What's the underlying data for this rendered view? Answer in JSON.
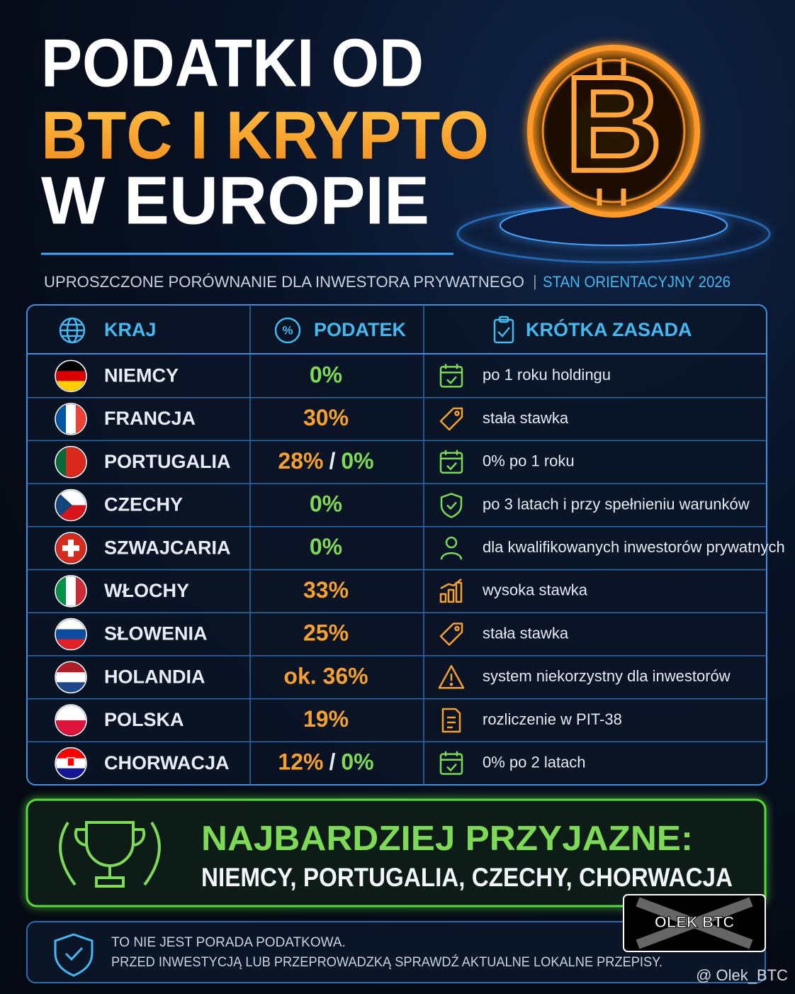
{
  "header": {
    "title_lines": [
      "PODATKI OD",
      "BTC I KRYPTO",
      "W EUROPIE"
    ],
    "subtitle": "UPROSZCZONE PORÓWNANIE DLA INWESTORA PRYWATNEGO",
    "subtitle_separator": "|",
    "subtitle_note": "STAN ORIENTACYJNY 2026"
  },
  "table": {
    "columns": [
      "KRAJ",
      "PODATEK",
      "KRÓTKA ZASADA"
    ],
    "tax_separator": "/",
    "rows": [
      {
        "country": "NIEMCY",
        "tax": [
          {
            "text": "0%",
            "color": "#7ed957"
          }
        ],
        "rule": "po 1 roku holdingu"
      },
      {
        "country": "FRANCJA",
        "tax": [
          {
            "text": "30%",
            "color": "#f5a030"
          }
        ],
        "rule": "stała stawka"
      },
      {
        "country": "PORTUGALIA",
        "tax": [
          {
            "text": "28%",
            "color": "#f5a030"
          },
          {
            "text": "0%",
            "color": "#7ed957"
          }
        ],
        "rule": "0% po 1 roku"
      },
      {
        "country": "CZECHY",
        "tax": [
          {
            "text": "0%",
            "color": "#7ed957"
          }
        ],
        "rule": "po 3 latach i przy spełnieniu warunków"
      },
      {
        "country": "SZWAJCARIA",
        "tax": [
          {
            "text": "0%",
            "color": "#7ed957"
          }
        ],
        "rule": "dla kwalifikowanych inwestorów prywatnych"
      },
      {
        "country": "WŁOCHY",
        "tax": [
          {
            "text": "33%",
            "color": "#f5a030"
          }
        ],
        "rule": "wysoka stawka"
      },
      {
        "country": "SŁOWENIA",
        "tax": [
          {
            "text": "25%",
            "color": "#f5a030"
          }
        ],
        "rule": "stała stawka"
      },
      {
        "country": "HOLANDIA",
        "tax": [
          {
            "text": "ok. 36%",
            "color": "#f5a030"
          }
        ],
        "rule": "system niekorzystny dla inwestorów"
      },
      {
        "country": "POLSKA",
        "tax": [
          {
            "text": "19%",
            "color": "#f5a030"
          }
        ],
        "rule": "rozliczenie w PIT-38"
      },
      {
        "country": "CHORWACJA",
        "tax": [
          {
            "text": "12%",
            "color": "#f5a030"
          },
          {
            "text": "0%",
            "color": "#7ed957"
          }
        ],
        "rule": "0% po 2 latach"
      }
    ]
  },
  "summary": {
    "title": "NAJBARDZIEJ PRZYJAZNE:",
    "countries": "NIEMCY, PORTUGALIA, CZECHY, CHORWACJA"
  },
  "disclaimer": {
    "lines": [
      "TO NIE JEST PORADA PODATKOWA.",
      "PRZED INWESTYCJĄ LUB PRZEPROWADZKĄ SPRAWDŹ AKTUALNE LOKALNE PRZEPISY."
    ]
  },
  "branding": {
    "logo": "OLEK BTC",
    "handle": "@ Olek_BTC"
  }
}
